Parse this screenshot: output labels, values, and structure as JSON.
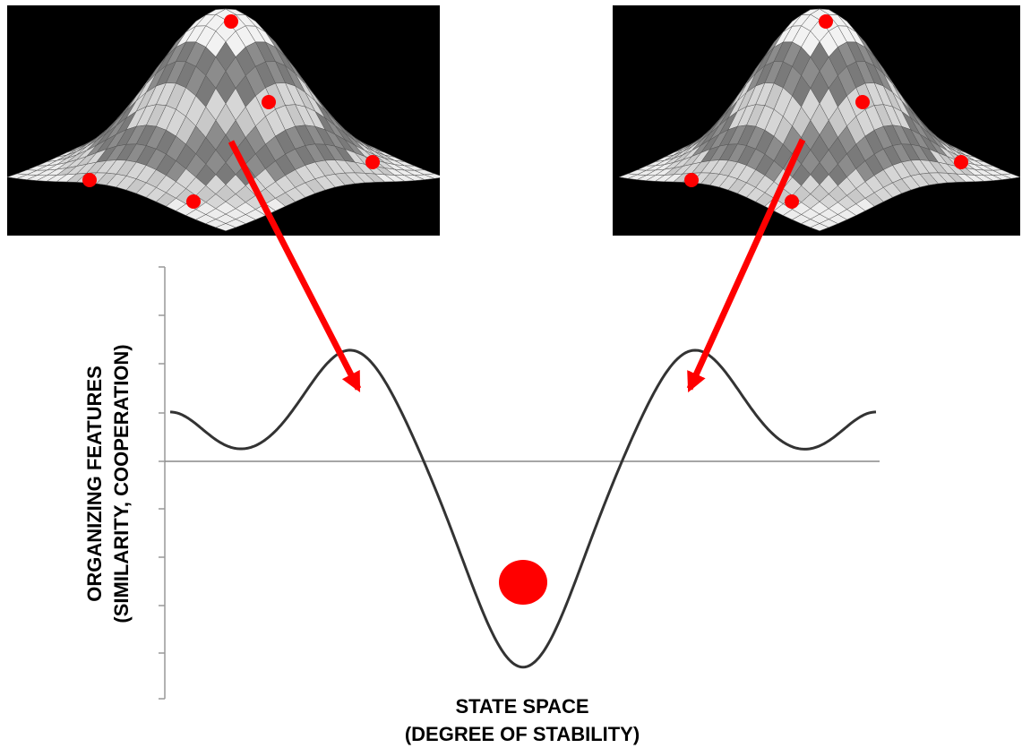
{
  "diagram": {
    "x_axis_label_line1": "STATE SPACE",
    "x_axis_label_line2": "(DEGREE OF STABILITY)",
    "y_axis_label_line1": "ORGANIZING FEATURES",
    "y_axis_label_line2": "(SIMILARITY, COOPERATION)",
    "insets": [
      {
        "name": "left-surface-inset",
        "ball_count": 5
      },
      {
        "name": "right-surface-inset",
        "ball_count": 5
      }
    ],
    "colors": {
      "ball": "#ff0000",
      "arrow": "#ff0000",
      "curve": "#333333",
      "baseline": "#888888",
      "axis": "#999999",
      "inset_background": "#000000"
    }
  }
}
